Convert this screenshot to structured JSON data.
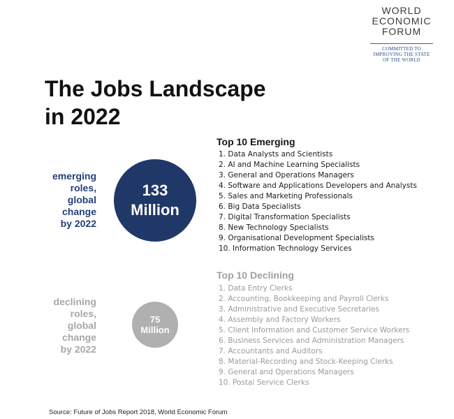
{
  "logo": {
    "lines": [
      "WORLD",
      "ECONOMIC",
      "FORUM"
    ],
    "tagline": [
      "COMMITTED TO",
      "IMPROVING THE STATE",
      "OF THE WORLD"
    ]
  },
  "title": [
    "The Jobs Landscape",
    "in 2022"
  ],
  "emerging": {
    "side_label": [
      "emerging",
      "roles,",
      "global",
      "change",
      "by 2022"
    ],
    "circle": [
      "133",
      "Million"
    ],
    "heading": "Top 10 Emerging",
    "items": [
      "1. Data Analysts and Scientists",
      "2. AI and Machine Learning Specialists",
      "3. General and Operations Managers",
      "4. Software and Applications Developers and Analysts",
      "5. Sales and Marketing Professionals",
      "6. Big Data Specialists",
      "7. Digital Transformation Specialists",
      "8. New Technology Specialists",
      "9. Organisational Development Specialists",
      "10. Information Technology Services"
    ]
  },
  "declining": {
    "side_label": [
      "declining",
      "roles,",
      "global",
      "change",
      "by 2022"
    ],
    "circle": [
      "75",
      "Million"
    ],
    "heading": "Top 10 Declining",
    "items": [
      "1. Data Entry Clerks",
      "2. Accounting, Bookkeeping and Payroll Clerks",
      "3. Administrative and Executive Secretaries",
      "4. Assembly and Factory Workers",
      "5. Client Information and Customer Service Workers",
      "6. Business Services and Administration Managers",
      "7. Accountants and Auditors",
      "8. Material-Recording and Stock-Keeping Clerks",
      "9. General and Operations Managers",
      "10. Postal Service Clerks"
    ]
  },
  "source": "Source: Future of Jobs Report 2018, World Economic Forum",
  "colors": {
    "emerging_circle": "#1f3868",
    "emerging_label": "#243f78",
    "declining_circle": "#b0b0b0",
    "declining_text": "#a0a0a0"
  }
}
